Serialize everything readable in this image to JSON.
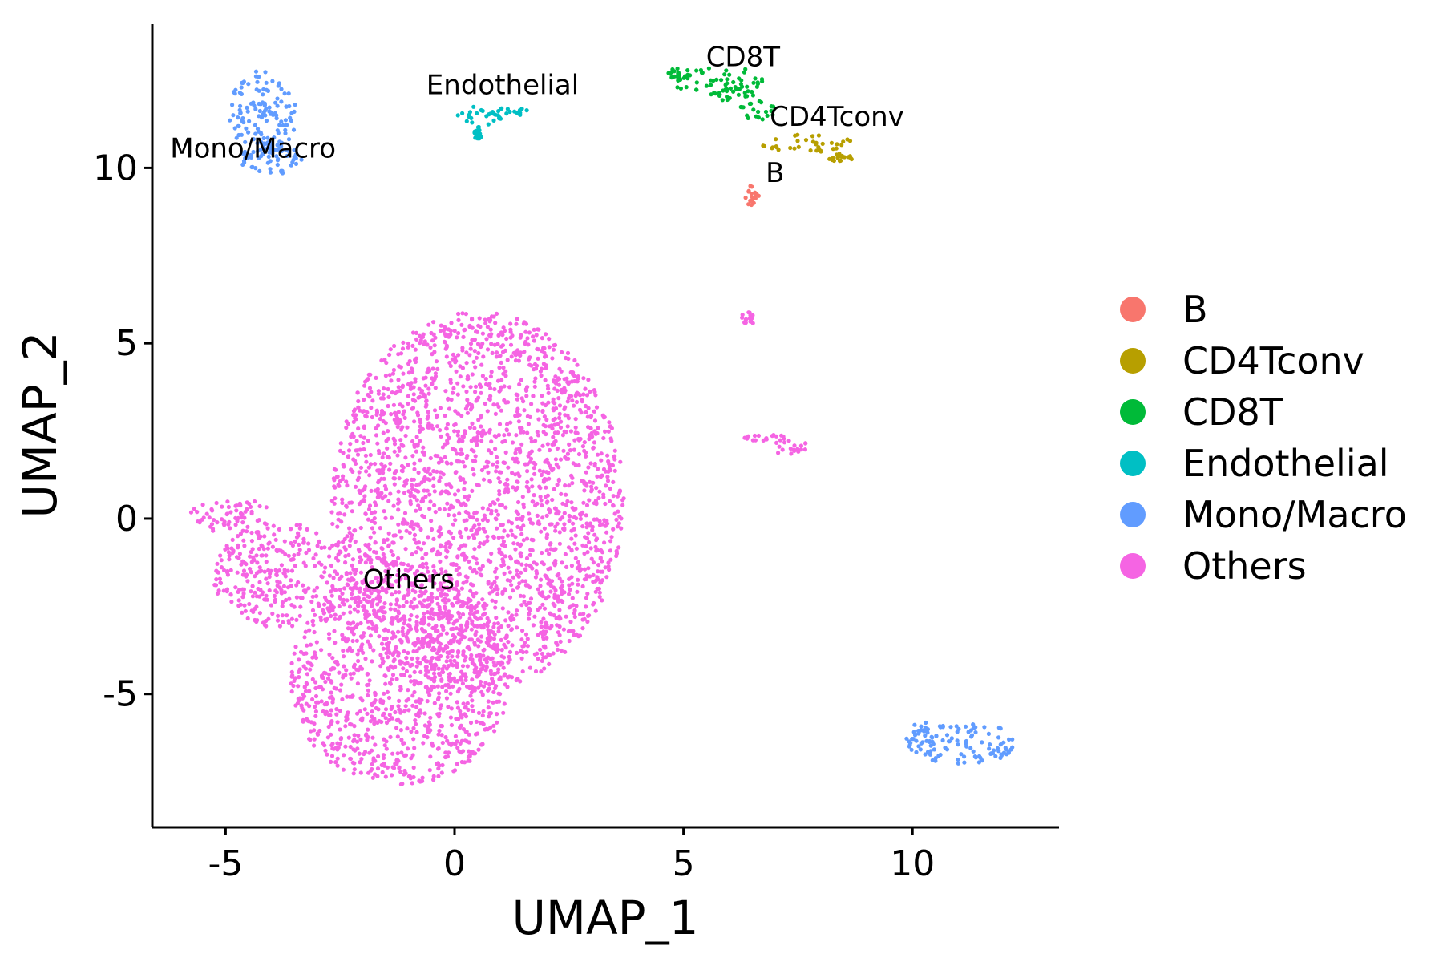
{
  "chart_data": {
    "type": "scatter",
    "xlabel": "UMAP_1",
    "ylabel": "UMAP_2",
    "xlim": [
      -6.6,
      13.2
    ],
    "ylim": [
      -8.8,
      14.1
    ],
    "x_ticks": [
      {
        "value": -5,
        "label": "-5"
      },
      {
        "value": 0,
        "label": "0"
      },
      {
        "value": 5,
        "label": "5"
      },
      {
        "value": 10,
        "label": "10"
      }
    ],
    "y_ticks": [
      {
        "value": -5,
        "label": "-5"
      },
      {
        "value": 0,
        "label": "0"
      },
      {
        "value": 5,
        "label": "5"
      },
      {
        "value": 10,
        "label": "10"
      }
    ],
    "grid": false,
    "legend_position": "right",
    "legend": [
      {
        "label": "B",
        "color": "#F8766D"
      },
      {
        "label": "CD4Tconv",
        "color": "#B79F00"
      },
      {
        "label": "CD8T",
        "color": "#00BA38"
      },
      {
        "label": "Endothelial",
        "color": "#00BFC4"
      },
      {
        "label": "Mono/Macro",
        "color": "#619CFF"
      },
      {
        "label": "Others",
        "color": "#F564E3"
      }
    ],
    "cluster_labels": [
      {
        "text": "Mono/Macro",
        "x": -4.4,
        "y": 10.3
      },
      {
        "text": "Endothelial",
        "x": 1.05,
        "y": 12.1
      },
      {
        "text": "CD8T",
        "x": 6.3,
        "y": 12.9
      },
      {
        "text": "CD4Tconv",
        "x": 8.35,
        "y": 11.2
      },
      {
        "text": "B",
        "x": 7.0,
        "y": 9.6
      },
      {
        "text": "Others",
        "x": -1.0,
        "y": -2.0
      }
    ],
    "clusters": [
      {
        "label": "Others",
        "color": "#F564E3",
        "regions": [
          {
            "cx": 0.5,
            "cy": 0.5,
            "rx": 3.2,
            "ry": 5.4
          },
          {
            "cx": -1.2,
            "cy": -4.6,
            "rx": 2.4,
            "ry": 3.0
          },
          {
            "cx": -3.8,
            "cy": -1.6,
            "rx": 1.5,
            "ry": 1.5
          },
          {
            "cx": -4.9,
            "cy": 0.1,
            "rx": 0.9,
            "ry": 0.5
          },
          {
            "cx": 7.3,
            "cy": 2.0,
            "rx": 0.45,
            "ry": 0.3
          },
          {
            "cx": 6.8,
            "cy": 2.3,
            "rx": 0.5,
            "ry": 0.1
          },
          {
            "cx": 6.4,
            "cy": 5.7,
            "rx": 0.15,
            "ry": 0.2
          }
        ]
      },
      {
        "label": "Mono/Macro",
        "color": "#619CFF",
        "regions": [
          {
            "cx": -4.2,
            "cy": 11.5,
            "rx": 0.75,
            "ry": 1.3
          },
          {
            "cx": -4.0,
            "cy": 10.3,
            "rx": 0.7,
            "ry": 0.5
          },
          {
            "cx": 11.1,
            "cy": -6.4,
            "rx": 1.2,
            "ry": 0.6
          },
          {
            "cx": 10.2,
            "cy": -6.2,
            "rx": 0.35,
            "ry": 0.5
          }
        ]
      },
      {
        "label": "Endothelial",
        "color": "#00BFC4",
        "regions": [
          {
            "cx": 0.55,
            "cy": 11.5,
            "rx": 0.5,
            "ry": 0.3
          },
          {
            "cx": 1.2,
            "cy": 11.6,
            "rx": 0.4,
            "ry": 0.15
          },
          {
            "cx": 0.5,
            "cy": 11.0,
            "rx": 0.1,
            "ry": 0.2
          }
        ]
      },
      {
        "label": "CD8T",
        "color": "#00BA38",
        "regions": [
          {
            "cx": 5.8,
            "cy": 12.4,
            "rx": 1.0,
            "ry": 0.5
          },
          {
            "cx": 4.9,
            "cy": 12.7,
            "rx": 0.3,
            "ry": 0.15
          },
          {
            "cx": 6.6,
            "cy": 11.6,
            "rx": 0.4,
            "ry": 0.35
          }
        ]
      },
      {
        "label": "CD4Tconv",
        "color": "#B79F00",
        "regions": [
          {
            "cx": 7.7,
            "cy": 10.7,
            "rx": 1.0,
            "ry": 0.25
          },
          {
            "cx": 8.4,
            "cy": 10.3,
            "rx": 0.3,
            "ry": 0.12
          }
        ]
      },
      {
        "label": "B",
        "color": "#F8766D",
        "regions": [
          {
            "cx": 6.5,
            "cy": 9.2,
            "rx": 0.15,
            "ry": 0.3
          }
        ]
      }
    ]
  }
}
